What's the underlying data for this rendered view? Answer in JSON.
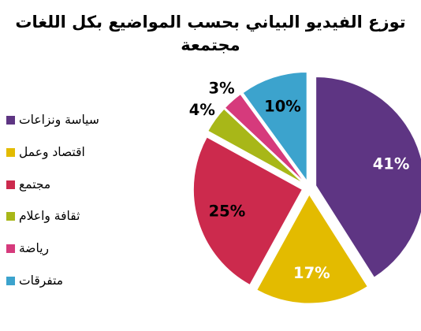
{
  "chart_data": {
    "type": "pie",
    "title_lines": [
      "توزع الفيديو البياني بحسب المواضيع بكل اللغات",
      "مجتمعة"
    ],
    "categories": [
      "سياسة ونزاعات",
      "اقتصاد وعمل",
      "مجتمع",
      "ثقافة واعلام",
      "رياضة",
      "متفرقات"
    ],
    "values": [
      41,
      17,
      25,
      4,
      3,
      10
    ],
    "value_labels": [
      "41%",
      "17%",
      "25%",
      "4%",
      "3%",
      "10%"
    ],
    "colors": [
      "#5e3583",
      "#e3bb00",
      "#cc2a4d",
      "#a8b718",
      "#d63a7c",
      "#3ca3cd"
    ],
    "label_colors": [
      "#ffffff",
      "#ffffff",
      "#000000",
      "#000000",
      "#000000",
      "#000000"
    ],
    "legend_position": "left",
    "exploded": true
  }
}
